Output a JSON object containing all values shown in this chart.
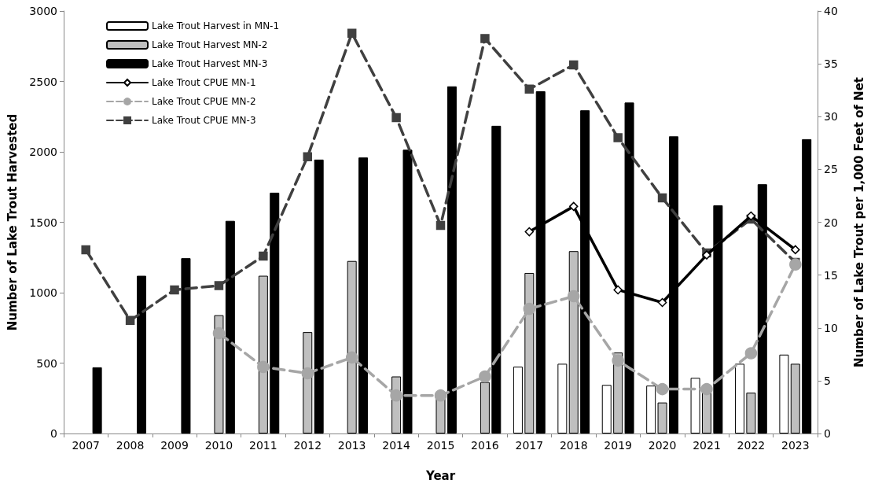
{
  "chart_data": {
    "type": "bar",
    "xlabel": "Year",
    "ylabel": "Number of Lake Trout Harvested",
    "y2label": "Number of Lake Trout per 1,000 Feet of Net",
    "categories": [
      "2007",
      "2008",
      "2009",
      "2010",
      "2011",
      "2012",
      "2013",
      "2014",
      "2015",
      "2016",
      "2017",
      "2018",
      "2019",
      "2020",
      "2021",
      "2022",
      "2023"
    ],
    "series": [
      {
        "name": "Lake Trout Harvest in MN-1",
        "color": "#ffffff",
        "values": [
          null,
          null,
          null,
          null,
          null,
          null,
          null,
          null,
          null,
          null,
          475,
          495,
          345,
          340,
          395,
          495,
          560
        ]
      },
      {
        "name": "Lake Trout Harvest MN-2",
        "color": "#bfbfbf",
        "values": [
          null,
          null,
          null,
          840,
          1120,
          720,
          1225,
          405,
          270,
          365,
          1140,
          1295,
          575,
          220,
          290,
          290,
          495
        ]
      },
      {
        "name": "Lake Trout Harvest MN-3",
        "color": "#000000",
        "values": [
          470,
          1120,
          1245,
          1510,
          1710,
          1945,
          1960,
          2015,
          2465,
          2185,
          2430,
          2295,
          2350,
          2110,
          1620,
          1770,
          2090
        ]
      },
      {
        "name": "Lake Trout CPUE MN-1",
        "type": "line",
        "axis": "y2",
        "color": "#000000",
        "marker": "diamond",
        "line_style": "solid",
        "values": [
          null,
          null,
          null,
          null,
          null,
          null,
          null,
          null,
          null,
          null,
          19.1,
          21.5,
          13.6,
          12.4,
          16.9,
          20.6,
          17.4
        ]
      },
      {
        "name": "Lake Trout CPUE MN-2",
        "type": "line",
        "axis": "y2",
        "color": "#a6a6a6",
        "marker": "circle",
        "line_style": "dashed",
        "values": [
          null,
          null,
          null,
          9.5,
          6.3,
          5.7,
          7.2,
          3.6,
          3.6,
          5.4,
          11.8,
          13.0,
          6.9,
          4.2,
          4.2,
          7.6,
          16.0
        ]
      },
      {
        "name": "Lake Trout CPUE MN-3",
        "type": "line",
        "axis": "y2",
        "color": "#404040",
        "marker": "square",
        "line_style": "dashed",
        "values": [
          17.4,
          10.7,
          13.6,
          14.0,
          16.8,
          26.2,
          37.9,
          29.9,
          19.7,
          37.4,
          32.6,
          34.9,
          28.0,
          22.3,
          17.1,
          20.3,
          16.2
        ]
      }
    ],
    "ylim": [
      0,
      3000
    ],
    "yticks": [
      0,
      500,
      1000,
      1500,
      2000,
      2500,
      3000
    ],
    "y2lim": [
      0,
      40
    ],
    "y2ticks": [
      0,
      5,
      10,
      15,
      20,
      25,
      30,
      35,
      40
    ],
    "legend": "top left",
    "grid": false
  }
}
